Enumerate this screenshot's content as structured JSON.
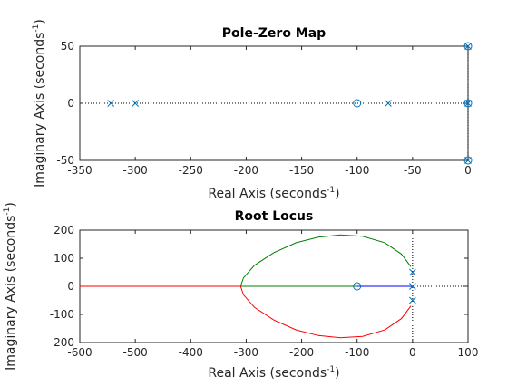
{
  "chart_data": [
    {
      "type": "scatter",
      "title": "Pole-Zero Map",
      "xlabel": "Real Axis (seconds",
      "ylabel": "Imaginary Axis (seconds",
      "label_exponent": "-1",
      "label_close": ")",
      "xlim": [
        -350,
        0
      ],
      "ylim": [
        -50,
        50
      ],
      "xticks": [
        "-350",
        "-300",
        "-250",
        "-200",
        "-150",
        "-100",
        "-50",
        "0"
      ],
      "yticks": [
        "-50",
        "0",
        "50"
      ],
      "grid": false,
      "marker_color": "#0072bd",
      "poles": [
        {
          "x": -322,
          "y": 0
        },
        {
          "x": -300,
          "y": 0
        },
        {
          "x": -72,
          "y": 0
        },
        {
          "x": 0,
          "y": 50
        },
        {
          "x": 0,
          "y": 0
        },
        {
          "x": 0,
          "y": -50
        }
      ],
      "zeros": [
        {
          "x": -100,
          "y": 0
        },
        {
          "x": 0,
          "y": 50
        },
        {
          "x": 0,
          "y": 0
        },
        {
          "x": 0,
          "y": -50
        }
      ]
    },
    {
      "type": "line",
      "title": "Root Locus",
      "xlabel": "Real Axis (seconds",
      "ylabel": "Imaginary Axis (seconds",
      "label_exponent": "-1",
      "label_close": ")",
      "xlim": [
        -600,
        100
      ],
      "ylim": [
        -200,
        200
      ],
      "xticks": [
        "-600",
        "-500",
        "-400",
        "-300",
        "-200",
        "-100",
        "0",
        "100"
      ],
      "yticks": [
        "-200",
        "-100",
        "0",
        "100",
        "200"
      ],
      "grid": false,
      "series": [
        {
          "color": "#0000ff",
          "x": [
            -100,
            0
          ],
          "y": [
            0,
            0
          ]
        },
        {
          "color": "#008000",
          "x": [
            -100,
            -310
          ],
          "y": [
            0,
            0
          ]
        },
        {
          "color": "#ff0000",
          "x": [
            -310,
            -600
          ],
          "y": [
            0,
            0
          ]
        },
        {
          "color": "#008000",
          "x": [
            -3,
            -20,
            -50,
            -90,
            -130,
            -170,
            -210,
            -250,
            -285,
            -305,
            -310
          ],
          "y": [
            70,
            115,
            155,
            178,
            183,
            175,
            155,
            120,
            75,
            30,
            0
          ]
        },
        {
          "color": "#ff0000",
          "x": [
            -3,
            -20,
            -50,
            -90,
            -130,
            -170,
            -210,
            -250,
            -285,
            -305,
            -310
          ],
          "y": [
            -70,
            -115,
            -155,
            -178,
            -183,
            -175,
            -155,
            -120,
            -75,
            -30,
            0
          ]
        }
      ],
      "poles": [
        {
          "x": 0,
          "y": 50
        },
        {
          "x": 0,
          "y": 0
        },
        {
          "x": 0,
          "y": -50
        }
      ],
      "zeros": [
        {
          "x": -100,
          "y": 0
        }
      ],
      "marker_color": "#0072bd"
    }
  ]
}
